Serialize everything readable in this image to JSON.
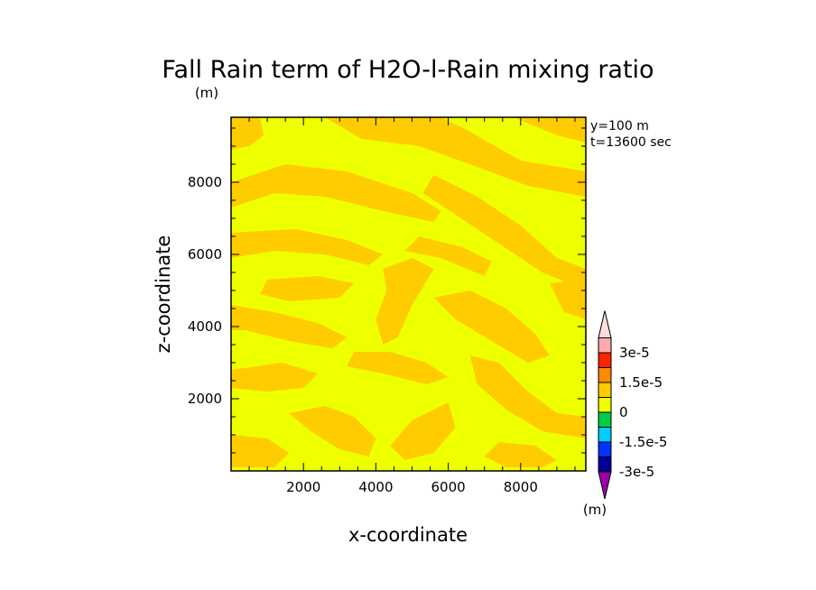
{
  "chart_data": {
    "type": "heatmap",
    "title": "Fall Rain term of H2O-l-Rain mixing ratio",
    "xlabel": "x-coordinate",
    "ylabel": "z-coordinate",
    "xunit": "(m)",
    "yunit": "(m)",
    "annotations": [
      "y=100 m",
      "t=13600 sec"
    ],
    "xlim": [
      0,
      9800
    ],
    "ylim": [
      0,
      9800
    ],
    "xticks": [
      2000,
      4000,
      6000,
      8000
    ],
    "yticks": [
      2000,
      4000,
      6000,
      8000
    ],
    "xtick_labels": [
      "2000",
      "4000",
      "6000",
      "8000"
    ],
    "ytick_labels": [
      "2000",
      "4000",
      "6000",
      "8000"
    ],
    "background_color": "#eeff00",
    "field_color": "#ffcc00",
    "colorbar": {
      "levels": [
        -3e-05,
        -2.25e-05,
        -1.5e-05,
        -7.5e-06,
        0,
        7.5e-06,
        1.5e-05,
        2.25e-05,
        3e-05
      ],
      "colors": [
        "#9900aa",
        "#000099",
        "#0033ff",
        "#00ccff",
        "#00cc44",
        "#eeff00",
        "#ffcc00",
        "#ff8800",
        "#ff2200",
        "#ffaaaa",
        "#ffdddd"
      ],
      "labels": [
        {
          "value": 3e-05,
          "text": "3e-5"
        },
        {
          "value": 1.5e-05,
          "text": "1.5e-5"
        },
        {
          "value": 0,
          "text": "0"
        },
        {
          "value": -1.5e-05,
          "text": "-1.5e-5"
        },
        {
          "value": -3e-05,
          "text": "-3e-5"
        }
      ]
    },
    "bands": [
      {
        "value": 4e-06,
        "points": [
          [
            0,
            9800
          ],
          [
            800,
            9800
          ],
          [
            900,
            9300
          ],
          [
            500,
            9000
          ],
          [
            0,
            8900
          ]
        ]
      },
      {
        "value": 4e-06,
        "points": [
          [
            2600,
            9800
          ],
          [
            5800,
            9800
          ],
          [
            6600,
            9400
          ],
          [
            8000,
            8600
          ],
          [
            9800,
            8300
          ],
          [
            9800,
            7600
          ],
          [
            8200,
            7900
          ],
          [
            6600,
            8500
          ],
          [
            5200,
            9000
          ],
          [
            3600,
            9200
          ]
        ]
      },
      {
        "value": 4e-06,
        "points": [
          [
            7800,
            9800
          ],
          [
            9800,
            9800
          ],
          [
            9800,
            9100
          ],
          [
            9000,
            9300
          ]
        ]
      },
      {
        "value": 4e-06,
        "points": [
          [
            0,
            8000
          ],
          [
            1500,
            8500
          ],
          [
            3200,
            8300
          ],
          [
            5000,
            7700
          ],
          [
            5800,
            7200
          ],
          [
            5600,
            6900
          ],
          [
            4200,
            7200
          ],
          [
            2600,
            7600
          ],
          [
            1200,
            7700
          ],
          [
            0,
            7300
          ]
        ]
      },
      {
        "value": 4e-06,
        "points": [
          [
            5600,
            8200
          ],
          [
            6800,
            7600
          ],
          [
            8000,
            6800
          ],
          [
            9000,
            5900
          ],
          [
            9800,
            5600
          ],
          [
            9800,
            5000
          ],
          [
            8600,
            5500
          ],
          [
            7400,
            6300
          ],
          [
            6200,
            7100
          ],
          [
            5300,
            7700
          ]
        ]
      },
      {
        "value": 4e-06,
        "points": [
          [
            0,
            6600
          ],
          [
            1800,
            6700
          ],
          [
            3200,
            6400
          ],
          [
            4200,
            6000
          ],
          [
            3800,
            5700
          ],
          [
            2600,
            6000
          ],
          [
            1200,
            6100
          ],
          [
            0,
            5900
          ]
        ]
      },
      {
        "value": 4e-06,
        "points": [
          [
            5200,
            6500
          ],
          [
            6400,
            6200
          ],
          [
            7200,
            5800
          ],
          [
            7000,
            5400
          ],
          [
            5800,
            5900
          ],
          [
            4800,
            6100
          ]
        ]
      },
      {
        "value": 4e-06,
        "points": [
          [
            1000,
            5300
          ],
          [
            2400,
            5400
          ],
          [
            3400,
            5200
          ],
          [
            3000,
            4800
          ],
          [
            1600,
            4700
          ],
          [
            800,
            4900
          ]
        ]
      },
      {
        "value": 4e-06,
        "points": [
          [
            4200,
            5600
          ],
          [
            5000,
            5900
          ],
          [
            5600,
            5600
          ],
          [
            5000,
            4600
          ],
          [
            4600,
            3700
          ],
          [
            4200,
            3500
          ],
          [
            4000,
            4200
          ],
          [
            4300,
            5000
          ]
        ]
      },
      {
        "value": 4e-06,
        "points": [
          [
            5600,
            4800
          ],
          [
            6600,
            5000
          ],
          [
            7600,
            4500
          ],
          [
            8400,
            3800
          ],
          [
            8800,
            3200
          ],
          [
            8200,
            3000
          ],
          [
            7200,
            3600
          ],
          [
            6200,
            4200
          ]
        ]
      },
      {
        "value": 4e-06,
        "points": [
          [
            0,
            4600
          ],
          [
            1200,
            4400
          ],
          [
            2400,
            4100
          ],
          [
            3200,
            3700
          ],
          [
            2800,
            3400
          ],
          [
            1600,
            3600
          ],
          [
            400,
            3900
          ],
          [
            0,
            3900
          ]
        ]
      },
      {
        "value": 4e-06,
        "points": [
          [
            8800,
            5200
          ],
          [
            9800,
            5300
          ],
          [
            9800,
            4200
          ],
          [
            9200,
            4400
          ]
        ]
      },
      {
        "value": 4e-06,
        "points": [
          [
            3400,
            3300
          ],
          [
            4400,
            3300
          ],
          [
            5400,
            3000
          ],
          [
            6000,
            2600
          ],
          [
            5400,
            2400
          ],
          [
            4200,
            2700
          ],
          [
            3200,
            2900
          ]
        ]
      },
      {
        "value": 4e-06,
        "points": [
          [
            0,
            2800
          ],
          [
            1400,
            3000
          ],
          [
            2400,
            2700
          ],
          [
            2000,
            2300
          ],
          [
            1000,
            2200
          ],
          [
            0,
            2300
          ]
        ]
      },
      {
        "value": 4e-06,
        "points": [
          [
            6600,
            3200
          ],
          [
            7400,
            3000
          ],
          [
            8200,
            2200
          ],
          [
            9000,
            1600
          ],
          [
            9800,
            1500
          ],
          [
            9800,
            900
          ],
          [
            8600,
            1100
          ],
          [
            7600,
            1700
          ],
          [
            6800,
            2400
          ]
        ]
      },
      {
        "value": 4e-06,
        "points": [
          [
            1600,
            1600
          ],
          [
            2600,
            1800
          ],
          [
            3400,
            1500
          ],
          [
            4000,
            900
          ],
          [
            3800,
            400
          ],
          [
            3000,
            600
          ],
          [
            2200,
            1100
          ]
        ]
      },
      {
        "value": 4e-06,
        "points": [
          [
            0,
            1000
          ],
          [
            1000,
            900
          ],
          [
            1600,
            500
          ],
          [
            1200,
            100
          ],
          [
            0,
            100
          ]
        ]
      },
      {
        "value": 4e-06,
        "points": [
          [
            5000,
            1400
          ],
          [
            6000,
            1900
          ],
          [
            6200,
            1200
          ],
          [
            5600,
            500
          ],
          [
            4800,
            300
          ],
          [
            4400,
            700
          ]
        ]
      },
      {
        "value": 4e-06,
        "points": [
          [
            7400,
            800
          ],
          [
            8400,
            700
          ],
          [
            9000,
            300
          ],
          [
            8600,
            100
          ],
          [
            7600,
            100
          ],
          [
            7000,
            400
          ]
        ]
      }
    ]
  }
}
